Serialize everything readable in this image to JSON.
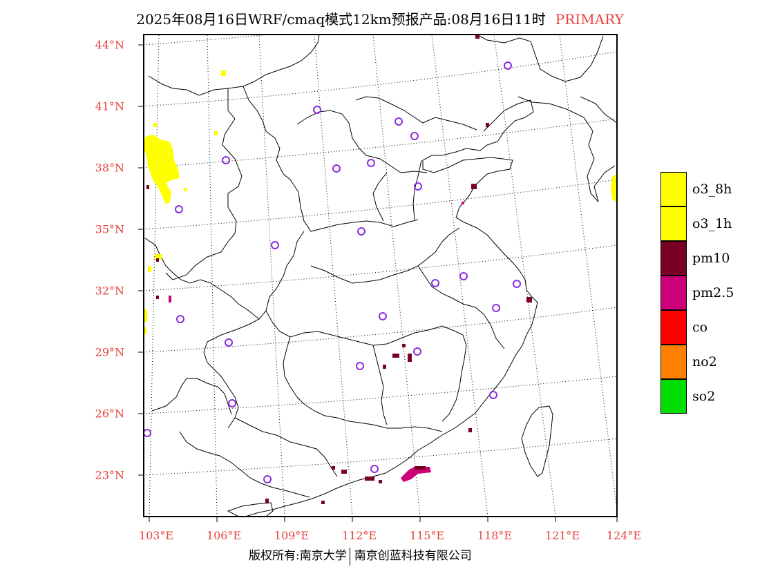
{
  "title": {
    "main": "2025年08月16日WRF/cmaq模式12km预报产品:08月16日11时",
    "tag": "PRIMARY",
    "tag_color": "#e8423c"
  },
  "map": {
    "lat_labels": [
      "44°N",
      "41°N",
      "38°N",
      "35°N",
      "32°N",
      "29°N",
      "26°N",
      "23°N"
    ],
    "lon_labels": [
      "103°E",
      "106°E",
      "109°E",
      "112°E",
      "115°E",
      "118°E",
      "121°E",
      "124°E"
    ],
    "station_marker": "circle-marker",
    "station_color": "#8a2be2"
  },
  "legend": [
    {
      "label": "o3_8h",
      "color": "#ffff00"
    },
    {
      "label": "o3_1h",
      "color": "#ffff00"
    },
    {
      "label": "pm10",
      "color": "#7a0026"
    },
    {
      "label": "pm2.5",
      "color": "#cc0077"
    },
    {
      "label": "co",
      "color": "#ff0000"
    },
    {
      "label": "no2",
      "color": "#ff8000"
    },
    {
      "label": "so2",
      "color": "#00dd00"
    }
  ],
  "copyright": {
    "left": "版权所有:南京大学",
    "right": "南京创蓝科技有限公司"
  }
}
